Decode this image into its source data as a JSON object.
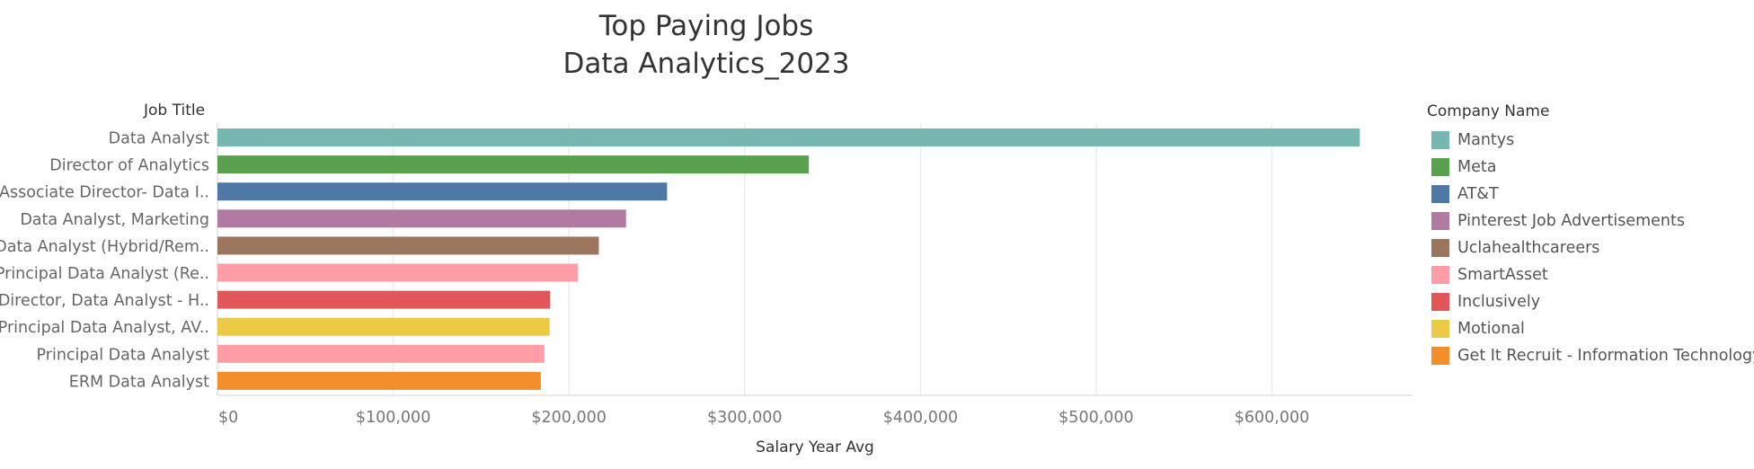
{
  "chart_data": {
    "type": "bar",
    "orientation": "horizontal",
    "title": [
      "Top Paying Jobs",
      "Data Analytics_2023"
    ],
    "ylabel": "Job Title",
    "xlabel": "Salary Year Avg",
    "xlim": [
      0,
      680000
    ],
    "x_ticks": [
      0,
      100000,
      200000,
      300000,
      400000,
      500000,
      600000
    ],
    "x_tick_labels": [
      "$0",
      "$100,000",
      "$200,000",
      "$300,000",
      "$400,000",
      "$500,000",
      "$600,000"
    ],
    "grid": "vertical",
    "legend": {
      "title": "Company Name",
      "position": "right",
      "entries": [
        {
          "name": "Mantys",
          "color": "#76B7B2"
        },
        {
          "name": "Meta",
          "color": "#59A14F"
        },
        {
          "name": "AT&T",
          "color": "#4E79A7"
        },
        {
          "name": "Pinterest Job Advertisements",
          "color": "#B07AA1"
        },
        {
          "name": "Uclahealthcareers",
          "color": "#9C755F"
        },
        {
          "name": "SmartAsset",
          "color": "#FF9DA7"
        },
        {
          "name": "Inclusively",
          "color": "#E15759"
        },
        {
          "name": "Motional",
          "color": "#EDC948"
        },
        {
          "name": "Get It Recruit - Information Technology",
          "color": "#F28E2B"
        }
      ]
    },
    "bars": [
      {
        "label": "Data Analyst",
        "value": 650000,
        "company": "Mantys",
        "color": "#76B7B2"
      },
      {
        "label": "Director of Analytics",
        "value": 336500,
        "company": "Meta",
        "color": "#59A14F"
      },
      {
        "label": "Associate Director- Data I..",
        "value": 255830,
        "company": "AT&T",
        "color": "#4E79A7"
      },
      {
        "label": "Data Analyst, Marketing",
        "value": 232500,
        "company": "Pinterest Job Advertisements",
        "color": "#B07AA1"
      },
      {
        "label": "Data Analyst (Hybrid/Rem..",
        "value": 217000,
        "company": "Uclahealthcareers",
        "color": "#9C755F"
      },
      {
        "label": "Principal Data Analyst (Re..",
        "value": 205000,
        "company": "SmartAsset",
        "color": "#FF9DA7"
      },
      {
        "label": "Director, Data Analyst - H..",
        "value": 189309,
        "company": "Inclusively",
        "color": "#E15759"
      },
      {
        "label": "Principal Data Analyst, AV..",
        "value": 189000,
        "company": "Motional",
        "color": "#EDC948"
      },
      {
        "label": "Principal Data Analyst",
        "value": 186000,
        "company": "SmartAsset",
        "color": "#FF9DA7"
      },
      {
        "label": "ERM Data Analyst",
        "value": 184000,
        "company": "Get It Recruit - Information Technology",
        "color": "#F28E2B"
      }
    ]
  }
}
